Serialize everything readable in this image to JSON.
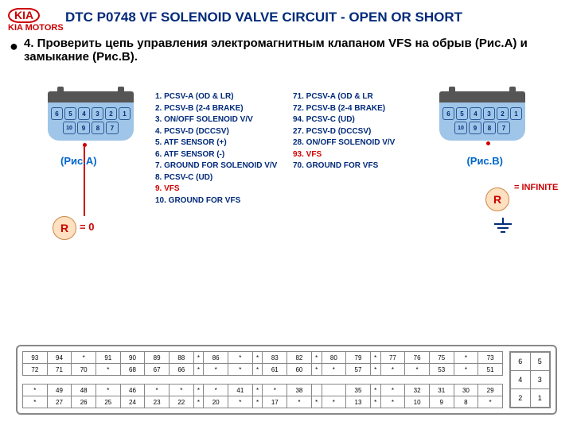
{
  "logo": {
    "brand": "KIA",
    "sub": "KIA MOTORS"
  },
  "title": "DTC P0748 VF SOLENOID VALVE CIRCUIT  - OPEN OR SHORT",
  "instruction": "4. Проверить цепь управления электромагнитным клапаном VFS на обрыв (Рис.А) и замыкание (Рис.В).",
  "figA": "(Рис.А)",
  "figB": "(Рис.В)",
  "rLabel": "R",
  "rAval": "= 0",
  "rBval": "= INFINITE",
  "connPins": {
    "row1": [
      "6",
      "5",
      "4",
      "3",
      "2",
      "1"
    ],
    "row2": [
      "10",
      "9",
      "8",
      "7"
    ]
  },
  "colL": [
    {
      "t": "1. PCSV-A (OD & LR)",
      "c": "n"
    },
    {
      "t": "2. PCSV-B (2-4 BRAKE)",
      "c": "n"
    },
    {
      "t": "3. ON/OFF SOLENOID V/V",
      "c": "n"
    },
    {
      "t": "4. PCSV-D (DCCSV)",
      "c": "n"
    },
    {
      "t": "5. ATF SENSOR (+)",
      "c": "n"
    },
    {
      "t": "6. ATF SENSOR (-)",
      "c": "n"
    },
    {
      "t": "7. GROUND FOR SOLENOID V/V",
      "c": "n"
    },
    {
      "t": "8. PCSV-C (UD)",
      "c": "n"
    },
    {
      "t": "9. VFS",
      "c": "r"
    },
    {
      "t": "10. GROUND FOR VFS",
      "c": "n"
    }
  ],
  "colR": [
    {
      "t": "71. PCSV-A (OD & LR",
      "c": "n"
    },
    {
      "t": "72. PCSV-B (2-4 BRAKE)",
      "c": "n"
    },
    {
      "t": "94. PCSV-C (UD)",
      "c": "n"
    },
    {
      "t": "27. PCSV-D (DCCSV)",
      "c": "n"
    },
    {
      "t": "28. ON/OFF SOLENOID V/V",
      "c": "n"
    },
    {
      "t": "93. VFS",
      "c": "r"
    },
    {
      "t": "70. GROUND FOR VFS",
      "c": "n"
    }
  ],
  "bigRows": [
    [
      "93",
      "94",
      "*",
      "91",
      "90",
      "89",
      "88",
      "*",
      "86",
      "*",
      "*",
      "83",
      "82",
      "*",
      "80",
      "79",
      "*",
      "77",
      "76",
      "75",
      "*",
      "73"
    ],
    [
      "72",
      "71",
      "70",
      "*",
      "68",
      "67",
      "66",
      "*",
      "*",
      "*",
      "*",
      "61",
      "60",
      "*",
      "*",
      "57",
      "*",
      "*",
      "*",
      "53",
      "*",
      "51"
    ]
  ],
  "bigRows2": [
    [
      "*",
      "49",
      "48",
      "*",
      "46",
      "*",
      "*",
      "*",
      "*",
      "41",
      "*",
      "*",
      "38",
      "",
      "",
      "35",
      "*",
      "*",
      "32",
      "31",
      "30",
      "29"
    ],
    [
      "*",
      "27",
      "26",
      "25",
      "24",
      "23",
      "22",
      "*",
      "20",
      "*",
      "*",
      "17",
      "*",
      "*",
      "*",
      "13",
      "*",
      "*",
      "10",
      "9",
      "8",
      "*"
    ]
  ],
  "side": [
    [
      "6",
      "5"
    ],
    [
      "4",
      "3"
    ],
    [
      "2",
      "1"
    ]
  ]
}
